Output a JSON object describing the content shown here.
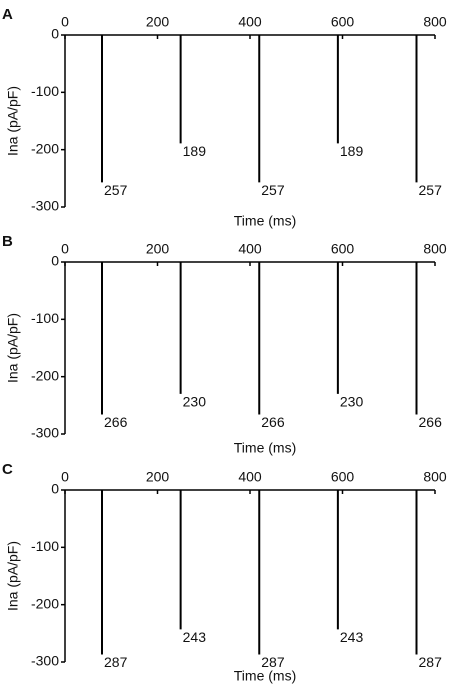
{
  "chart_data": [
    {
      "type": "stem",
      "panel_label": "A",
      "xlabel": "Time (ms)",
      "ylabel": "Ina (pA/pF)",
      "x": [
        80,
        250,
        420,
        590,
        760
      ],
      "values": [
        -257,
        -189,
        -257,
        -189,
        -257
      ],
      "value_labels": [
        "257",
        "189",
        "257",
        "189",
        "257"
      ],
      "color": "#000000",
      "xlim": [
        0,
        800
      ],
      "xticks": [
        0,
        200,
        400,
        600,
        800
      ],
      "ylim": [
        -300,
        0
      ],
      "yticks": [
        0,
        -100,
        -200,
        -300
      ]
    },
    {
      "type": "stem",
      "panel_label": "B",
      "xlabel": "Time (ms)",
      "ylabel": "Ina (pA/pF)",
      "x": [
        80,
        250,
        420,
        590,
        760
      ],
      "values": [
        -266,
        -230,
        -266,
        -230,
        -266
      ],
      "value_labels": [
        "266",
        "230",
        "266",
        "230",
        "266"
      ],
      "color": "#000000",
      "xlim": [
        0,
        800
      ],
      "xticks": [
        0,
        200,
        400,
        600,
        800
      ],
      "ylim": [
        -300,
        0
      ],
      "yticks": [
        0,
        -100,
        -200,
        -300
      ]
    },
    {
      "type": "stem",
      "panel_label": "C",
      "xlabel": "Time (ms)",
      "ylabel": "Ina (pA/pF)",
      "x": [
        80,
        250,
        420,
        590,
        760
      ],
      "values": [
        -287,
        -243,
        -287,
        -243,
        -287
      ],
      "value_labels": [
        "287",
        "243",
        "287",
        "243",
        "287"
      ],
      "color": "#000000",
      "xlim": [
        0,
        800
      ],
      "xticks": [
        0,
        200,
        400,
        600,
        800
      ],
      "ylim": [
        -300,
        0
      ],
      "yticks": [
        0,
        -100,
        -200,
        -300
      ]
    }
  ]
}
